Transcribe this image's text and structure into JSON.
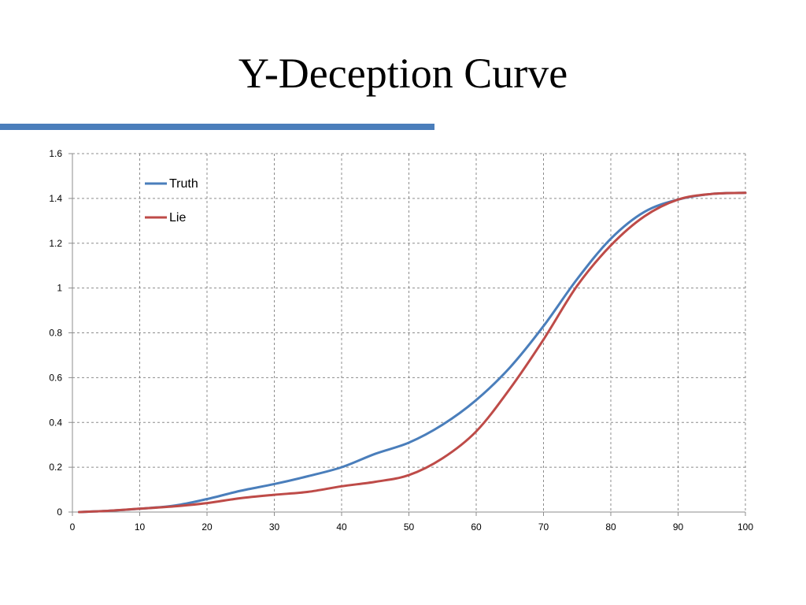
{
  "slide": {
    "title": "Y-Deception Curve",
    "rule_color": "#4A7EBB"
  },
  "chart_data": {
    "type": "line",
    "title": "",
    "xlabel": "",
    "ylabel": "",
    "xlim": [
      0,
      100
    ],
    "ylim": [
      0,
      1.6
    ],
    "x_ticks": [
      0,
      10,
      20,
      30,
      40,
      50,
      60,
      70,
      80,
      90,
      100
    ],
    "y_ticks": [
      0,
      0.2,
      0.4,
      0.6,
      0.8,
      1,
      1.2,
      1.4,
      1.6
    ],
    "y_tick_labels": [
      "0",
      "0.2",
      "0.4",
      "0.6",
      "0.8",
      "1",
      "1.2",
      "1.4",
      "1.6"
    ],
    "grid": true,
    "grid_style": "dashed",
    "legend_position": "top-left",
    "series": [
      {
        "name": "Truth",
        "color": "#4A7EBB",
        "x": [
          1,
          5,
          10,
          15,
          20,
          25,
          30,
          35,
          40,
          45,
          50,
          55,
          60,
          65,
          70,
          75,
          80,
          85,
          90,
          95,
          100
        ],
        "y": [
          0,
          0.005,
          0.015,
          0.028,
          0.058,
          0.095,
          0.125,
          0.16,
          0.2,
          0.26,
          0.31,
          0.39,
          0.5,
          0.645,
          0.83,
          1.04,
          1.22,
          1.34,
          1.395,
          1.42,
          1.425
        ]
      },
      {
        "name": "Lie",
        "color": "#BE4B48",
        "x": [
          1,
          5,
          10,
          15,
          20,
          25,
          30,
          35,
          40,
          45,
          50,
          55,
          60,
          65,
          70,
          75,
          80,
          85,
          90,
          95,
          100
        ],
        "y": [
          0,
          0.005,
          0.015,
          0.025,
          0.04,
          0.062,
          0.077,
          0.09,
          0.115,
          0.135,
          0.165,
          0.24,
          0.36,
          0.55,
          0.77,
          1.01,
          1.19,
          1.32,
          1.395,
          1.42,
          1.425
        ]
      }
    ]
  }
}
